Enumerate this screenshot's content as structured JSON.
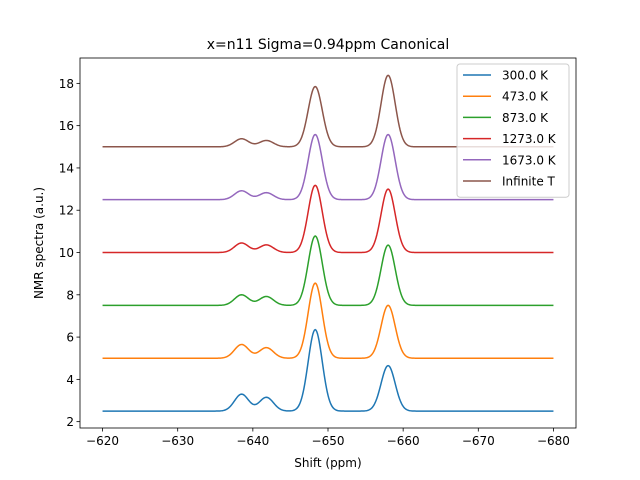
{
  "chart_data": {
    "type": "line",
    "title": "x=n11  Sigma=0.94ppm  Canonical",
    "xlabel": "Shift (ppm)",
    "ylabel": "NMR spectra (a.u.)",
    "xlim": [
      -617,
      -683
    ],
    "ylim": [
      1.7,
      19.2
    ],
    "xticks": [
      -620,
      -630,
      -640,
      -650,
      -660,
      -670,
      -680
    ],
    "xtick_labels": [
      "−620",
      "−630",
      "−640",
      "−650",
      "−660",
      "−670",
      "−680"
    ],
    "yticks": [
      2,
      4,
      6,
      8,
      10,
      12,
      14,
      16,
      18
    ],
    "ytick_labels": [
      "2",
      "4",
      "6",
      "8",
      "10",
      "12",
      "14",
      "16",
      "18"
    ],
    "grid": false,
    "legend": "upper right",
    "peak_centers": [
      -638.5,
      -641.8,
      -648.3,
      -658.0
    ],
    "sigma": 0.94,
    "series": [
      {
        "name": "300.0 K",
        "color": "#1f77b4",
        "baseline": 2.5,
        "amplitudes": [
          0.8,
          0.65,
          3.85,
          2.15
        ]
      },
      {
        "name": "473.0 K",
        "color": "#ff7f0e",
        "baseline": 5.0,
        "amplitudes": [
          0.65,
          0.5,
          3.55,
          2.5
        ]
      },
      {
        "name": "873.0 K",
        "color": "#2ca02c",
        "baseline": 7.5,
        "amplitudes": [
          0.5,
          0.42,
          3.28,
          2.85
        ]
      },
      {
        "name": "1273.0 K",
        "color": "#d62728",
        "baseline": 10.0,
        "amplitudes": [
          0.45,
          0.36,
          3.18,
          3.0
        ]
      },
      {
        "name": "1673.0 K",
        "color": "#9467bd",
        "baseline": 12.5,
        "amplitudes": [
          0.42,
          0.33,
          3.08,
          3.08
        ]
      },
      {
        "name": "Infinite T",
        "color": "#8c564b",
        "baseline": 15.0,
        "amplitudes": [
          0.38,
          0.3,
          2.85,
          3.38
        ]
      }
    ],
    "x_range": [
      -620,
      -680
    ]
  }
}
